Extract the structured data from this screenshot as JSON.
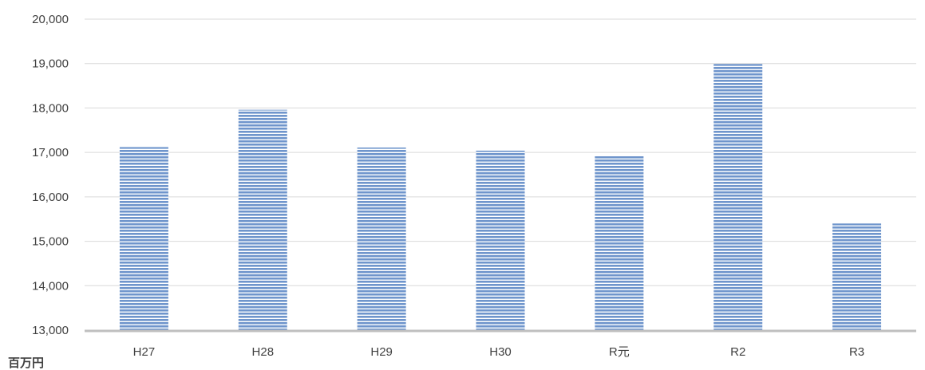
{
  "chart_data": {
    "type": "bar",
    "title": "",
    "xlabel": "",
    "ylabel": "",
    "unit_label": "百万円",
    "categories": [
      "H27",
      "H28",
      "H29",
      "H30",
      "R元",
      "R2",
      "R3"
    ],
    "values": [
      17120,
      17960,
      17110,
      17040,
      16920,
      18990,
      15400
    ],
    "ylim": [
      13000,
      20000
    ],
    "yticks": [
      13000,
      14000,
      15000,
      16000,
      17000,
      18000,
      19000,
      20000
    ],
    "ytick_labels": [
      "13,000",
      "14,000",
      "15,000",
      "16,000",
      "17,000",
      "18,000",
      "19,000",
      "20,000"
    ],
    "grid": true,
    "legend": "none",
    "colors": {
      "bar_fill": "#6f95cc",
      "bar_stripe": "#ffffff",
      "gridline": "#d9d9d9",
      "axis": "#bfbfbf",
      "text": "#404040"
    }
  }
}
